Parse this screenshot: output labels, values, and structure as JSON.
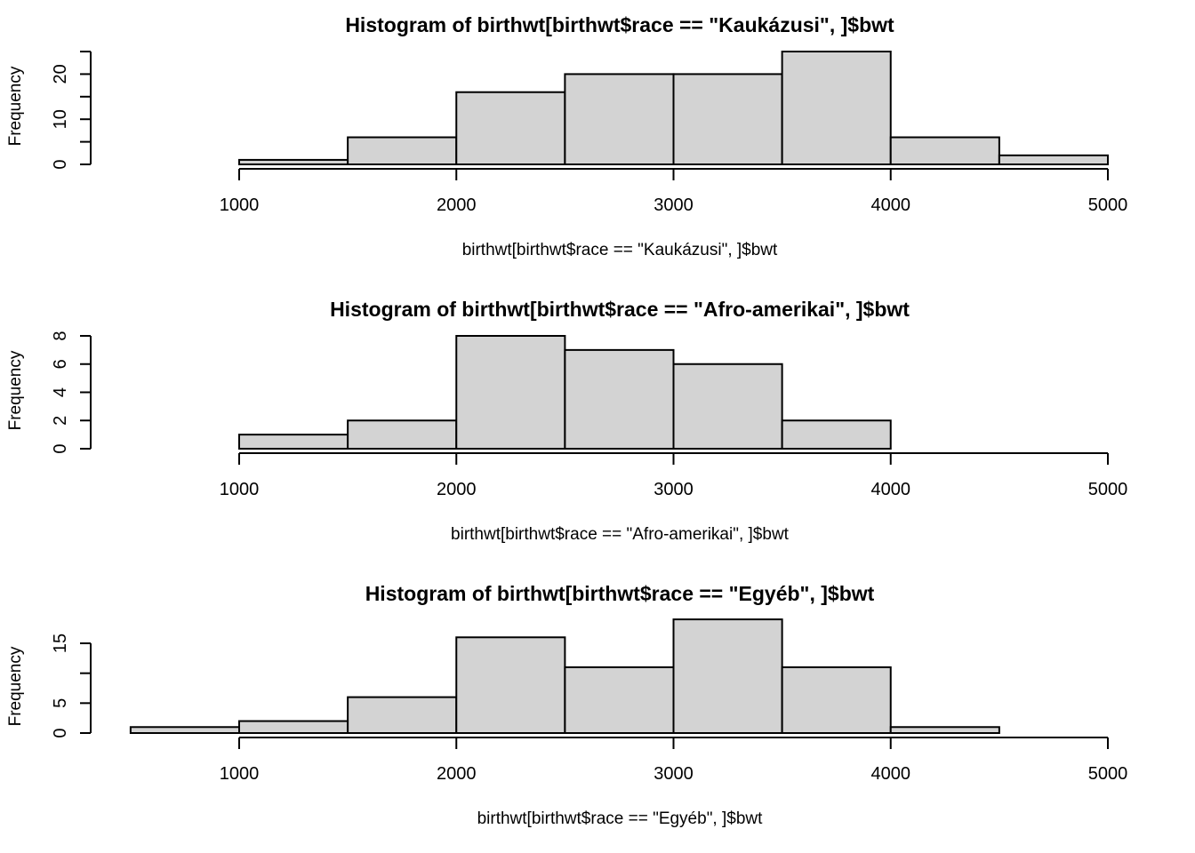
{
  "chart_data": [
    {
      "type": "bar",
      "title": "Histogram of birthwt[birthwt$race == \"Kaukázusi\", ]$bwt",
      "xlabel": "birthwt[birthwt$race == \"Kaukázusi\", ]$bwt",
      "ylabel": "Frequency",
      "bin_edges": [
        1000,
        1500,
        2000,
        2500,
        3000,
        3500,
        4000,
        4500,
        5000
      ],
      "values": [
        1,
        6,
        16,
        20,
        20,
        25,
        6,
        2
      ],
      "xticks": [
        1000,
        2000,
        3000,
        4000,
        5000
      ],
      "yticks": [
        0,
        5,
        10,
        15,
        20,
        25
      ],
      "ytick_labels": [
        "0",
        "",
        "10",
        "",
        "20",
        ""
      ],
      "xlim": [
        1000,
        5000
      ],
      "ylim": [
        0,
        25
      ],
      "fill": "#d3d3d3",
      "grid": false
    },
    {
      "type": "bar",
      "title": "Histogram of birthwt[birthwt$race == \"Afro-amerikai\", ]$bwt",
      "xlabel": "birthwt[birthwt$race == \"Afro-amerikai\", ]$bwt",
      "ylabel": "Frequency",
      "bin_edges": [
        1000,
        1500,
        2000,
        2500,
        3000,
        3500,
        4000
      ],
      "values": [
        1,
        2,
        8,
        7,
        6,
        2
      ],
      "xticks": [
        1000,
        2000,
        3000,
        4000,
        5000
      ],
      "yticks": [
        0,
        2,
        4,
        6,
        8
      ],
      "ytick_labels": [
        "0",
        "2",
        "4",
        "6",
        "8"
      ],
      "xlim": [
        1000,
        5000
      ],
      "ylim": [
        0,
        8
      ],
      "fill": "#d3d3d3",
      "grid": false
    },
    {
      "type": "bar",
      "title": "Histogram of birthwt[birthwt$race == \"Egyéb\", ]$bwt",
      "xlabel": "birthwt[birthwt$race == \"Egyéb\", ]$bwt",
      "ylabel": "Frequency",
      "bin_edges": [
        500,
        1000,
        1500,
        2000,
        2500,
        3000,
        3500,
        4000,
        4500
      ],
      "values": [
        1,
        2,
        6,
        16,
        11,
        19,
        11,
        1
      ],
      "xticks": [
        1000,
        2000,
        3000,
        4000,
        5000
      ],
      "yticks": [
        0,
        5,
        10,
        15
      ],
      "ytick_labels": [
        "0",
        "5",
        "",
        "15"
      ],
      "xlim": [
        1000,
        5000
      ],
      "ylim": [
        0,
        15
      ],
      "fill": "#d3d3d3",
      "grid": false
    }
  ]
}
